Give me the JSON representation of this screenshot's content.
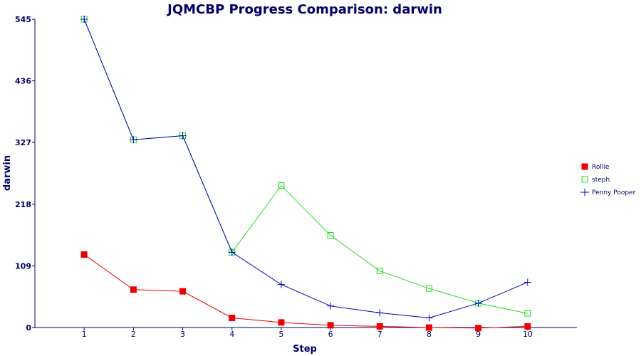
{
  "chart_data": {
    "type": "line",
    "title": "JQMCBP Progress Comparison: darwin",
    "xlabel": "Step",
    "ylabel": "darwin",
    "x": [
      1,
      2,
      3,
      4,
      5,
      6,
      7,
      8,
      9,
      10
    ],
    "xlim": [
      0,
      11
    ],
    "ylim": [
      0,
      545
    ],
    "yticks": [
      0,
      109,
      218,
      327,
      436,
      545
    ],
    "grid": false,
    "legend_position": "right",
    "series": [
      {
        "name": "Rollie",
        "color": "#ee0000",
        "marker": "filled-square",
        "values": [
          129,
          67,
          64,
          17,
          9,
          4,
          2,
          0,
          -1,
          2
        ]
      },
      {
        "name": "steph",
        "color": "#22dd22",
        "marker": "open-square",
        "values": [
          545,
          332,
          339,
          133,
          251,
          163,
          100,
          69,
          43,
          25
        ]
      },
      {
        "name": "Penny Pooper",
        "color": "#0000bb",
        "marker": "plus",
        "values": [
          545,
          332,
          339,
          133,
          76,
          38,
          26,
          17,
          43,
          80
        ]
      }
    ],
    "colors": {
      "text": "#000066",
      "axis": "#000066"
    }
  }
}
